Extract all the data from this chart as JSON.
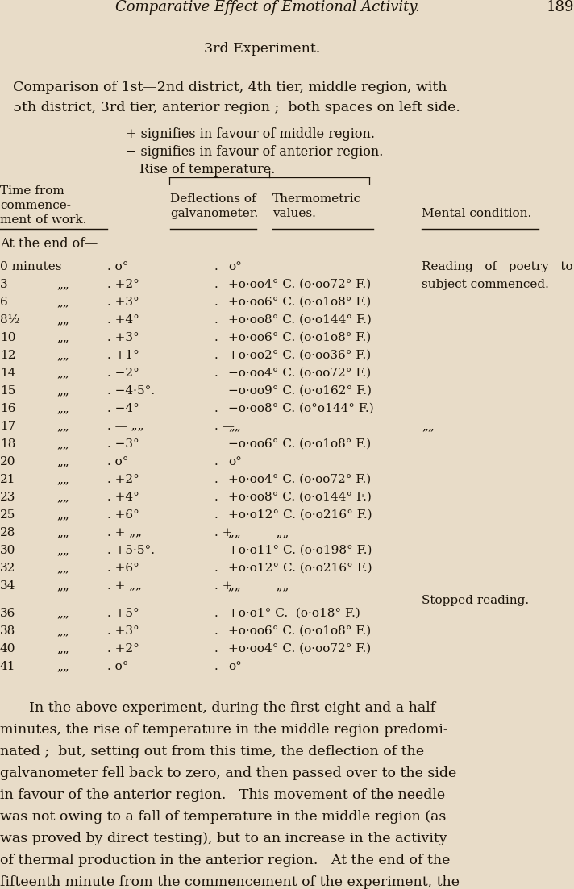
{
  "bg_color": "#e8dcc8",
  "text_color": "#1a1208",
  "page_title_italic": "Comparative Effect of Emotional Activity.",
  "page_number": "189",
  "section_title": "3rd Experiment.",
  "intro_line1": "Comparison of 1st—2nd district, 4th tier, middle region, with",
  "intro_line2": "5th district, 3rd tier, anterior region ;  both spaces on left side.",
  "plus_line": "+ signifies in favour of middle region.",
  "minus_line": "− signifies in favour of anterior region.",
  "rise_line": "Rise of temperature.",
  "col1_h1": "Time from",
  "col1_h2": "commence-",
  "col1_h3": "ment of work.",
  "col2_h1": "Deflections of",
  "col2_h2": "galvanometer.",
  "col3_h1": "Thermometric",
  "col3_h2": "values.",
  "col4_h": "Mental condition.",
  "at_end": "At the end of—",
  "rows": [
    {
      "t": "0 minutes",
      "g": ". o°",
      "dot": ".",
      "th": "o°",
      "m": "Reading   of   poetry   to"
    },
    {
      "t": "3",
      "g": ". +2°",
      "dot": ".",
      "th": "+o·oo4° C. (o·oo72° F.)",
      "m": "subject commenced."
    },
    {
      "t": "6",
      "g": ". +3°",
      "dot": ".",
      "th": "+o·oo6° C. (o·o1o8° F.)",
      "m": ""
    },
    {
      "t": "8½",
      "g": ". +4°",
      "dot": ".",
      "th": "+o·oo8° C. (o·o144° F.)",
      "m": ""
    },
    {
      "t": "10",
      "g": ". +3°",
      "dot": ".",
      "th": "+o·oo6° C. (o·o1o8° F.)",
      "m": ""
    },
    {
      "t": "12",
      "g": ". +1°",
      "dot": ".",
      "th": "+o·oo2° C. (o·oo36° F.)",
      "m": ""
    },
    {
      "t": "14",
      "g": ". −2°",
      "dot": ".",
      "th": "−o·oo4° C. (o·oo72° F.)",
      "m": ""
    },
    {
      "t": "15",
      "g": ". −4·5°.",
      "dot": "",
      "th": "−o·oo9° C. (o·o162° F.)",
      "m": ""
    },
    {
      "t": "16",
      "g": ". −4°",
      "dot": ".",
      "th": "−o·oo8° C. (o°o144° F.)",
      "m": ""
    },
    {
      "t": "17",
      "g": ". — „„",
      "dot": ". —",
      "th": "„„",
      "m": "„„"
    },
    {
      "t": "18",
      "g": ". −3°",
      "dot": "",
      "th": "−o·oo6° C. (o·o1o8° F.)",
      "m": ""
    },
    {
      "t": "20",
      "g": ". o°",
      "dot": ".",
      "th": "o°",
      "m": ""
    },
    {
      "t": "21",
      "g": ". +2°",
      "dot": ".",
      "th": "+o·oo4° C. (o·oo72° F.)",
      "m": ""
    },
    {
      "t": "23",
      "g": ". +4°",
      "dot": ".",
      "th": "+o·oo8° C. (o·o144° F.)",
      "m": ""
    },
    {
      "t": "25",
      "g": ". +6°",
      "dot": ".",
      "th": "+o·o12° C. (o·o216° F.)",
      "m": ""
    },
    {
      "t": "28",
      "g": ". + „„",
      "dot": ". +",
      "th": "„„         „„",
      "m": ""
    },
    {
      "t": "30",
      "g": ". +5·5°.",
      "dot": "",
      "th": "+o·o11° C. (o·o198° F.)",
      "m": ""
    },
    {
      "t": "32",
      "g": ". +6°",
      "dot": ".",
      "th": "+o·o12° C. (o·o216° F.)",
      "m": ""
    },
    {
      "t": "34",
      "g": ". + „„",
      "dot": ". +",
      "th": "„„         „„",
      "m": ""
    }
  ],
  "stopped_reading": "Stopped reading.",
  "rows2": [
    {
      "t": "36",
      "g": ". +5°",
      "dot": ".",
      "th": "+o·o1° C.  (o·o18° F.)",
      "m": ""
    },
    {
      "t": "38",
      "g": ". +3°",
      "dot": ".",
      "th": "+o·oo6° C. (o·o1o8° F.)",
      "m": ""
    },
    {
      "t": "40",
      "g": ". +2°",
      "dot": ".",
      "th": "+o·oo4° C. (o·oo72° F.)",
      "m": ""
    },
    {
      "t": "41",
      "g": ". o°",
      "dot": ".",
      "th": "o°",
      "m": ""
    }
  ],
  "para_lines": [
    "In the above experiment, during the first eight and a half",
    "minutes, the rise of temperature in the middle region predomi-",
    "nated ;  but, setting out from this time, the deflection of the",
    "galvanometer fell back to zero, and then passed over to the side",
    "in favour of the anterior region.   This movement of the needle",
    "was not owing to a fall of temperature in the middle region (as",
    "was proved by direct testing), but to an increase in the activity",
    "of thermal production in the anterior region.   At the end of the",
    "fifteenth minute from the commencement of the experiment, the"
  ]
}
